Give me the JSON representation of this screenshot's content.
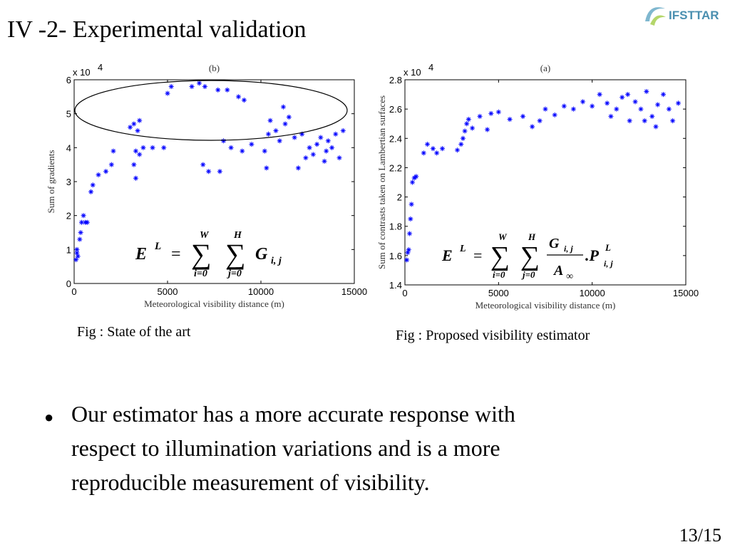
{
  "title": "IV -2- Experimental validation",
  "logo": "IFSTTAR",
  "page_number": "13/15",
  "bullet": {
    "symbol": "●",
    "lines": [
      "Our estimator  has a more accurate response with",
      "respect to illumination variations and  is a more",
      "reproducible measurement of visibility."
    ]
  },
  "chart_data": [
    {
      "type": "scatter",
      "title": "(b)",
      "caption": "Fig : State of the art",
      "xlabel": "Meteorological visibility distance (m)",
      "ylabel": "Sum of gradients",
      "y_multiplier": {
        "base": "x 10",
        "exp": "4"
      },
      "color": "#0000ff",
      "xlim": [
        0,
        15000
      ],
      "ylim": [
        0,
        6
      ],
      "xticks": [
        0,
        5000,
        10000,
        15000
      ],
      "yticks": [
        0,
        1,
        2,
        3,
        4,
        5,
        6
      ],
      "formula": {
        "lhs": "E",
        "lhs_sup": "L",
        "eq": "=",
        "sum": "∑",
        "sum1_top": "W",
        "sum1_bottom": "i=0",
        "sum2_top": "H",
        "sum2_bottom": "j=0",
        "term": "G",
        "term_sub": "i, j"
      },
      "x": [
        100,
        150,
        200,
        150,
        300,
        350,
        400,
        500,
        600,
        700,
        900,
        1000,
        1300,
        1700,
        2000,
        2100,
        3000,
        3200,
        3500,
        3400,
        3300,
        3500,
        3200,
        3300,
        3700,
        4200,
        4800,
        5000,
        5200,
        6300,
        6700,
        7000,
        6900,
        7200,
        7800,
        7700,
        8200,
        8800,
        9100,
        8000,
        8400,
        9000,
        10200,
        10500,
        10400,
        10800,
        11000,
        11200,
        11500,
        11800,
        12000,
        12400,
        12600,
        12800,
        13000,
        13200,
        13400,
        13600,
        13800,
        14000,
        14200,
        14400,
        11300,
        12200,
        13500,
        10300,
        9500
      ],
      "values": [
        0.7,
        0.9,
        0.8,
        1.0,
        1.3,
        1.5,
        1.8,
        2.0,
        1.8,
        1.8,
        2.7,
        2.9,
        3.2,
        3.3,
        3.5,
        3.9,
        4.6,
        4.7,
        4.8,
        4.5,
        3.9,
        3.8,
        3.5,
        3.1,
        4.0,
        4.0,
        4.0,
        5.6,
        5.8,
        5.8,
        5.9,
        5.8,
        3.5,
        3.3,
        3.3,
        5.7,
        5.7,
        5.5,
        5.4,
        4.2,
        4.0,
        3.9,
        3.9,
        4.8,
        4.4,
        4.5,
        4.2,
        5.2,
        4.9,
        4.3,
        3.4,
        3.7,
        4.0,
        3.8,
        4.1,
        4.3,
        3.6,
        4.2,
        4.0,
        4.4,
        3.7,
        4.5,
        4.7,
        4.4,
        3.9,
        3.4,
        4.1
      ]
    },
    {
      "type": "scatter",
      "title": "(a)",
      "caption": "Fig : Proposed visibility estimator",
      "xlabel": "Meteorological visibility distance (m)",
      "ylabel": "Sum of contrasts taken on Lambertian surfaces",
      "y_multiplier": {
        "base": "x 10",
        "exp": "4"
      },
      "color": "#0000ff",
      "xlim": [
        0,
        15000
      ],
      "ylim": [
        1.4,
        2.8
      ],
      "xticks": [
        0,
        5000,
        10000,
        15000
      ],
      "yticks": [
        1.4,
        1.6,
        1.8,
        2,
        2.2,
        2.4,
        2.6,
        2.8
      ],
      "formula": {
        "lhs": "E",
        "lhs_sup": "L",
        "eq": "=",
        "sum": "∑",
        "sum1_top": "W",
        "sum1_bottom": "i=0",
        "sum2_top": "H",
        "sum2_bottom": "j=0",
        "num": "G",
        "num_sub": "i, j",
        "den": "A",
        "den_sub": "∞",
        "factor": ".P",
        "factor_sup": "L",
        "factor_sub": "i, j"
      },
      "x": [
        100,
        150,
        200,
        250,
        300,
        350,
        400,
        500,
        600,
        1000,
        1200,
        1500,
        1700,
        2000,
        2800,
        3000,
        3100,
        3200,
        3300,
        3400,
        3600,
        4000,
        4400,
        4600,
        5000,
        5600,
        6300,
        6800,
        7200,
        7500,
        8000,
        8500,
        9000,
        9500,
        10000,
        10400,
        10800,
        11000,
        11300,
        11600,
        12000,
        12300,
        12600,
        12900,
        13200,
        13500,
        13800,
        14100,
        14300,
        14600,
        11900,
        12800,
        13400
      ],
      "values": [
        1.57,
        1.62,
        1.64,
        1.75,
        1.85,
        1.95,
        2.1,
        2.13,
        2.14,
        2.3,
        2.36,
        2.33,
        2.3,
        2.33,
        2.32,
        2.36,
        2.4,
        2.45,
        2.5,
        2.53,
        2.47,
        2.55,
        2.46,
        2.57,
        2.58,
        2.53,
        2.55,
        2.48,
        2.52,
        2.6,
        2.56,
        2.62,
        2.6,
        2.65,
        2.62,
        2.7,
        2.64,
        2.55,
        2.6,
        2.68,
        2.52,
        2.65,
        2.6,
        2.72,
        2.55,
        2.63,
        2.7,
        2.6,
        2.52,
        2.64,
        2.7,
        2.52,
        2.48
      ]
    }
  ]
}
